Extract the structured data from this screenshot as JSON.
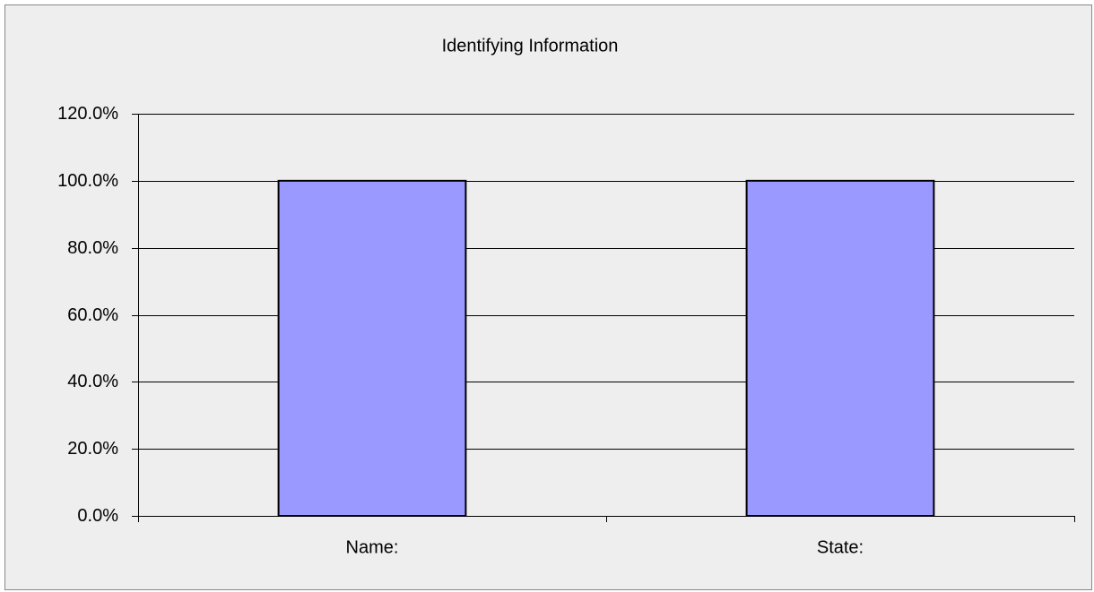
{
  "chart_data": {
    "type": "bar",
    "title": "Identifying Information",
    "categories": [
      "Name:",
      "State:"
    ],
    "values": [
      100,
      100
    ],
    "color": "#9999ff",
    "ylim": [
      0,
      120
    ],
    "yticks": [
      {
        "value": 0,
        "label": "0.0%"
      },
      {
        "value": 20,
        "label": "20.0%"
      },
      {
        "value": 40,
        "label": "40.0%"
      },
      {
        "value": 60,
        "label": "60.0%"
      },
      {
        "value": 80,
        "label": "80.0%"
      },
      {
        "value": 100,
        "label": "100.0%"
      },
      {
        "value": 120,
        "label": "120.0%"
      }
    ],
    "grid": true
  }
}
